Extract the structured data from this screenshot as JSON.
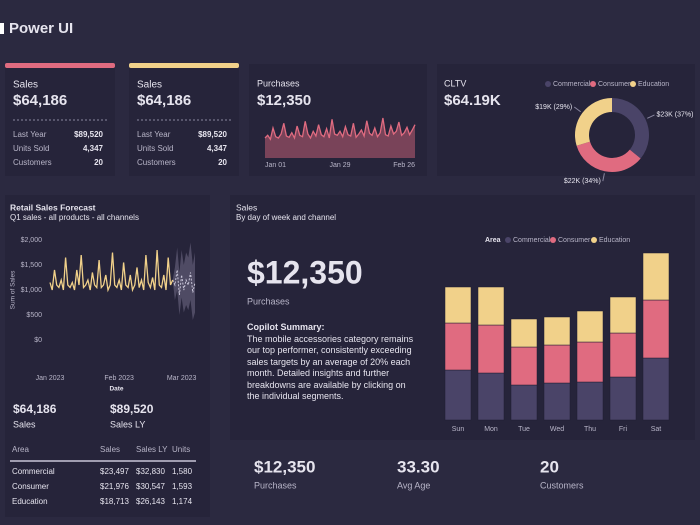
{
  "header": {
    "title": "Power UI"
  },
  "cards": [
    {
      "title": "Sales",
      "value": "$64,186",
      "rows": [
        [
          "Last Year",
          "$89,520"
        ],
        [
          "Units Sold",
          "4,347"
        ],
        [
          "Customers",
          "20"
        ]
      ]
    },
    {
      "title": "Sales",
      "value": "$64,186",
      "rows": [
        [
          "Last Year",
          "$89,520"
        ],
        [
          "Units Sold",
          "4,347"
        ],
        [
          "Customers",
          "20"
        ]
      ]
    }
  ],
  "purchases_card": {
    "title": "Purchases",
    "value": "$12,350"
  },
  "cltv_card": {
    "title": "CLTV",
    "value": "$64.19K"
  },
  "forecast_card": {
    "title": "Retail Sales Forecast",
    "subtitle": "Q1 sales - all products - all channels",
    "kpis": [
      {
        "value": "$64,186",
        "label": "Sales"
      },
      {
        "value": "$89,520",
        "label": "Sales LY"
      }
    ]
  },
  "table": {
    "header": [
      "Area",
      "Sales",
      "Sales LY",
      "Units"
    ],
    "rows": [
      [
        "Commercial",
        "$23,497",
        "$32,830",
        "1,580"
      ],
      [
        "Consumer",
        "$21,976",
        "$30,547",
        "1,593"
      ],
      [
        "Education",
        "$18,713",
        "$26,143",
        "1,174"
      ]
    ]
  },
  "sales_card": {
    "title": "Sales",
    "subtitle": "By day of week and channel",
    "big_value": "$12,350",
    "big_label": "Purchases",
    "summary_title": "Copilot Summary:",
    "summary": "The mobile accessories category remains our top performer, consistently exceeding sales targets by an average of 20% each month. Detailed insights and further breakdowns are available by clicking on the individual segments."
  },
  "kpis": [
    {
      "value": "$12,350",
      "label": "Purchases"
    },
    {
      "value": "33.30",
      "label": "Avg Age"
    },
    {
      "value": "20",
      "label": "Customers"
    }
  ],
  "chart_data": [
    {
      "type": "area",
      "color": "#e06b80",
      "categories": [
        "Jan 01",
        null,
        null,
        null,
        null,
        null,
        null,
        null,
        null,
        null,
        null,
        null,
        null,
        null,
        null,
        null,
        null,
        null,
        null,
        null,
        null,
        null,
        null,
        null,
        null,
        null,
        null,
        null,
        "Jan 29",
        null,
        null,
        null,
        null,
        null,
        null,
        null,
        null,
        null,
        null,
        null,
        null,
        null,
        null,
        null,
        null,
        null,
        null,
        null,
        null,
        null,
        null,
        null,
        null,
        null,
        null,
        null,
        "Feb 26"
      ],
      "values": [
        30,
        34,
        28,
        45,
        32,
        30,
        36,
        52,
        33,
        31,
        38,
        30,
        48,
        34,
        32,
        55,
        36,
        30,
        40,
        33,
        50,
        35,
        32,
        44,
        30,
        58,
        36,
        34,
        40,
        32,
        47,
        35,
        33,
        52,
        31,
        36,
        42,
        33,
        56,
        37,
        34,
        45,
        32,
        38,
        60,
        35,
        33,
        48,
        36,
        40,
        54,
        34,
        38,
        46,
        35,
        42,
        50
      ]
    },
    {
      "type": "line",
      "color": "#f1d18a",
      "xlabel": "Date",
      "ylabel": "Sum of Sales",
      "ylim": [
        0,
        2000
      ],
      "yticks": [
        {
          "value": 0,
          "label": "$0"
        },
        {
          "value": 500,
          "label": "$500"
        },
        {
          "value": 1000,
          "label": "$1,000"
        },
        {
          "value": 1500,
          "label": "$1,500"
        },
        {
          "value": 2000,
          "label": "$2,000"
        }
      ],
      "categories": [
        "Jan 2023",
        null,
        null,
        null,
        null,
        null,
        null,
        null,
        null,
        null,
        null,
        null,
        null,
        null,
        null,
        null,
        null,
        null,
        null,
        null,
        null,
        null,
        null,
        null,
        null,
        null,
        null,
        null,
        null,
        null,
        null,
        "Feb 2023",
        null,
        null,
        null,
        null,
        null,
        null,
        null,
        null,
        null,
        null,
        null,
        null,
        null,
        null,
        null,
        null,
        null,
        null,
        null,
        null,
        null,
        null,
        null,
        null,
        null,
        null,
        null,
        "Mar 2023",
        null,
        null,
        null,
        null,
        null,
        null
      ],
      "values": [
        1150,
        1000,
        1400,
        1100,
        1050,
        1200,
        1000,
        1650,
        1100,
        1050,
        1150,
        1000,
        1400,
        1100,
        1700,
        1050,
        1100,
        1200,
        1000,
        1350,
        1100,
        1050,
        1600,
        1050,
        1100,
        1300,
        1000,
        1100,
        1750,
        1100,
        1050,
        1200,
        1000,
        1550,
        1100,
        1050,
        1300,
        1000,
        1100,
        1450,
        1050,
        1200,
        1000,
        1700,
        1150,
        1050,
        1250,
        1000,
        1800,
        1100,
        1050,
        1300,
        1000,
        1650,
        1100,
        1200,
        null,
        null,
        null,
        null,
        null,
        null,
        null,
        null,
        null,
        null
      ],
      "forecast": [
        null,
        null,
        null,
        null,
        null,
        null,
        null,
        null,
        null,
        null,
        null,
        null,
        null,
        null,
        null,
        null,
        null,
        null,
        null,
        null,
        null,
        null,
        null,
        null,
        null,
        null,
        null,
        null,
        null,
        null,
        null,
        null,
        null,
        null,
        null,
        null,
        null,
        null,
        null,
        null,
        null,
        null,
        null,
        null,
        null,
        null,
        null,
        null,
        null,
        null,
        null,
        null,
        null,
        null,
        null,
        1200,
        1100,
        1400,
        900,
        1300,
        1000,
        1200,
        1100,
        1350,
        950,
        1150
      ],
      "lower": [
        null,
        null,
        null,
        null,
        null,
        null,
        null,
        null,
        null,
        null,
        null,
        null,
        null,
        null,
        null,
        null,
        null,
        null,
        null,
        null,
        null,
        null,
        null,
        null,
        null,
        null,
        null,
        null,
        null,
        null,
        null,
        null,
        null,
        null,
        null,
        null,
        null,
        null,
        null,
        null,
        null,
        null,
        null,
        null,
        null,
        null,
        null,
        null,
        null,
        null,
        null,
        null,
        null,
        null,
        null,
        1200,
        800,
        1000,
        500,
        850,
        550,
        700,
        600,
        800,
        400,
        550
      ],
      "upper": [
        null,
        null,
        null,
        null,
        null,
        null,
        null,
        null,
        null,
        null,
        null,
        null,
        null,
        null,
        null,
        null,
        null,
        null,
        null,
        null,
        null,
        null,
        null,
        null,
        null,
        null,
        null,
        null,
        null,
        null,
        null,
        null,
        null,
        null,
        null,
        null,
        null,
        null,
        null,
        null,
        null,
        null,
        null,
        null,
        null,
        null,
        null,
        null,
        null,
        null,
        null,
        null,
        null,
        null,
        null,
        1200,
        1450,
        1850,
        1350,
        1800,
        1500,
        1750,
        1650,
        1950,
        1500,
        1750
      ]
    },
    {
      "type": "pie",
      "donut": true,
      "categories": [
        "Commercial",
        "Consumer",
        "Education"
      ],
      "values": [
        23000,
        22000,
        19000
      ],
      "value_labels": [
        "$23K (37%)",
        "$22K (34%)",
        "$19K (29%)"
      ],
      "colors": [
        "#4a4468",
        "#e06b80",
        "#f1d18a"
      ]
    },
    {
      "type": "bar",
      "stacked": true,
      "legend_title": "Area",
      "legend": "top-right",
      "categories": [
        "Sun",
        "Mon",
        "Tue",
        "Wed",
        "Thu",
        "Fri",
        "Sat"
      ],
      "series": [
        {
          "name": "Commercial",
          "color": "#4a4468",
          "values": [
            50,
            47,
            35,
            37,
            38,
            43,
            62
          ]
        },
        {
          "name": "Consumer",
          "color": "#e06b80",
          "values": [
            47,
            48,
            38,
            38,
            40,
            44,
            58
          ]
        },
        {
          "name": "Education",
          "color": "#f1d18a",
          "values": [
            36,
            38,
            28,
            28,
            31,
            36,
            47
          ]
        }
      ]
    }
  ]
}
